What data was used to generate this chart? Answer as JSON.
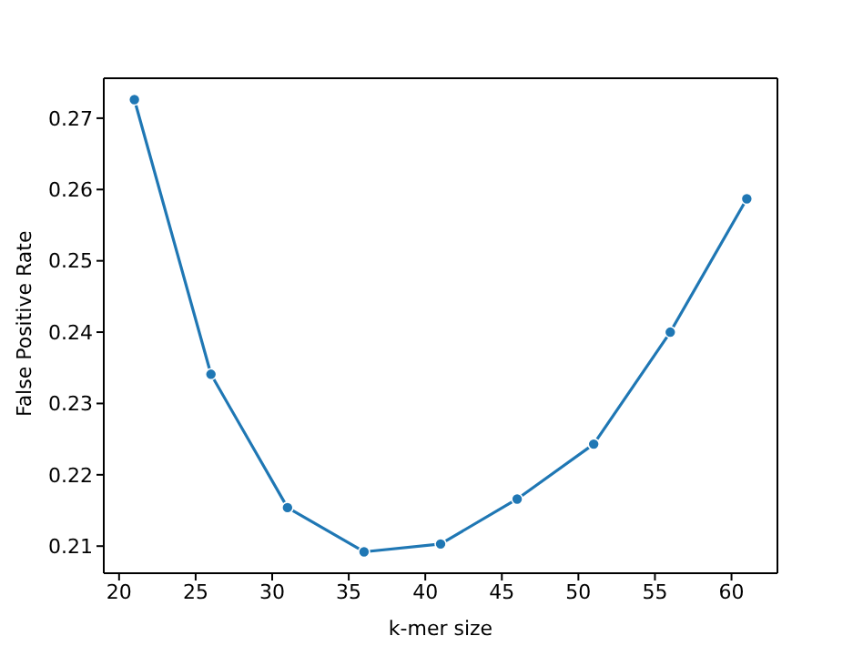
{
  "chart_data": {
    "type": "line",
    "xlabel": "k-mer size",
    "ylabel": "False Positive Rate",
    "x": [
      21,
      26,
      31,
      36,
      41,
      46,
      51,
      56,
      61
    ],
    "series": [
      {
        "color": "#1f77b4",
        "values": [
          0.2726,
          0.2341,
          0.2154,
          0.2092,
          0.2103,
          0.2166,
          0.2243,
          0.24,
          0.2587
        ]
      }
    ],
    "xlim": [
      19,
      63
    ],
    "xticks": [
      20,
      25,
      30,
      35,
      40,
      45,
      50,
      55,
      60
    ],
    "ylim": [
      0.2062,
      0.2756
    ],
    "yticks": [
      0.21,
      0.22,
      0.23,
      0.24,
      0.25,
      0.26,
      0.27
    ],
    "grid": false,
    "legend": false,
    "marker": "circle",
    "line_style": "solid"
  }
}
